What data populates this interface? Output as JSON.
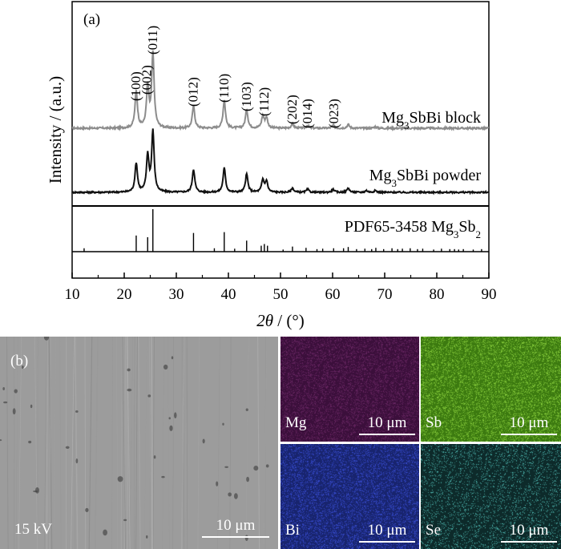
{
  "panel_a": {
    "label": "(a)",
    "xlabel_var": "2θ",
    "xlabel_unit": " / (°)",
    "ylabel": "Intensity / (a.u.)"
  },
  "chart_data": {
    "type": "line",
    "title": "",
    "xlabel": "2θ / (°)",
    "ylabel": "Intensity / (a.u.)",
    "xlim": [
      10,
      90
    ],
    "xticks": [
      10,
      20,
      30,
      40,
      50,
      60,
      70,
      80,
      90
    ],
    "series": [
      {
        "name": "Mg3SbBi block",
        "label_main": "Mg",
        "label_sub": "3",
        "label_rest": "SbBi block",
        "color": "#8c8c8c",
        "peaks": [
          [
            22.3,
            0.5
          ],
          [
            24.5,
            0.55
          ],
          [
            25.5,
            1.0
          ],
          [
            33.3,
            0.3
          ],
          [
            39.2,
            0.38
          ],
          [
            43.5,
            0.25
          ],
          [
            46.6,
            0.16
          ],
          [
            47.3,
            0.14
          ],
          [
            52.3,
            0.06
          ],
          [
            55.2,
            0.04
          ],
          [
            60.1,
            0.04
          ],
          [
            63.0,
            0.05
          ],
          [
            68.2,
            0.02
          ]
        ]
      },
      {
        "name": "Mg3SbBi powder",
        "label_main": "Mg",
        "label_sub": "3",
        "label_rest": "SbBi powder",
        "color": "#111111",
        "peaks": [
          [
            22.3,
            0.48
          ],
          [
            24.5,
            0.6
          ],
          [
            25.5,
            1.0
          ],
          [
            33.3,
            0.38
          ],
          [
            39.2,
            0.4
          ],
          [
            43.5,
            0.3
          ],
          [
            46.6,
            0.2
          ],
          [
            47.3,
            0.18
          ],
          [
            52.3,
            0.07
          ],
          [
            55.2,
            0.05
          ],
          [
            60.1,
            0.05
          ],
          [
            63.0,
            0.07
          ],
          [
            66.5,
            0.03
          ],
          [
            68.2,
            0.03
          ]
        ]
      }
    ],
    "reference": {
      "name": "PDF65-3458 Mg3Sb2",
      "label_main": "PDF65-3458 Mg",
      "label_sub": "3",
      "label_rest": "Sb",
      "label_sub2": "2",
      "sticks": [
        [
          12.3,
          0.08
        ],
        [
          22.3,
          0.38
        ],
        [
          24.5,
          0.34
        ],
        [
          25.5,
          1.0
        ],
        [
          33.3,
          0.44
        ],
        [
          37.3,
          0.08
        ],
        [
          39.2,
          0.46
        ],
        [
          41.2,
          0.07
        ],
        [
          43.5,
          0.26
        ],
        [
          46.3,
          0.14
        ],
        [
          46.9,
          0.18
        ],
        [
          47.5,
          0.14
        ],
        [
          50.5,
          0.05
        ],
        [
          52.3,
          0.12
        ],
        [
          54.9,
          0.09
        ],
        [
          57.0,
          0.06
        ],
        [
          58.1,
          0.07
        ],
        [
          60.2,
          0.08
        ],
        [
          62.1,
          0.08
        ],
        [
          63.0,
          0.11
        ],
        [
          64.6,
          0.06
        ],
        [
          66.2,
          0.07
        ],
        [
          67.5,
          0.06
        ],
        [
          68.3,
          0.09
        ],
        [
          69.8,
          0.06
        ],
        [
          71.4,
          0.08
        ],
        [
          72.5,
          0.06
        ],
        [
          73.4,
          0.07
        ],
        [
          74.9,
          0.08
        ],
        [
          76.3,
          0.06
        ],
        [
          77.3,
          0.07
        ],
        [
          79.4,
          0.05
        ],
        [
          80.9,
          0.07
        ],
        [
          82.5,
          0.06
        ],
        [
          83.4,
          0.06
        ],
        [
          84.2,
          0.05
        ],
        [
          85.1,
          0.06
        ],
        [
          87.0,
          0.05
        ],
        [
          88.6,
          0.06
        ]
      ]
    },
    "annotations": [
      {
        "hkl": "(100)",
        "x": 22.3
      },
      {
        "hkl": "(002)",
        "x": 24.4
      },
      {
        "hkl": "(011)",
        "x": 25.5
      },
      {
        "hkl": "(012)",
        "x": 33.3
      },
      {
        "hkl": "(110)",
        "x": 39.2
      },
      {
        "hkl": "(103)",
        "x": 43.5
      },
      {
        "hkl": "(112)",
        "x": 46.9
      },
      {
        "hkl": "(202)",
        "x": 52.3
      },
      {
        "hkl": "(014)",
        "x": 55.2
      },
      {
        "hkl": "(023)",
        "x": 60.3
      }
    ]
  },
  "panel_b": {
    "label": "(b)",
    "sem": {
      "voltage": "15 kV",
      "scale": "10 μm"
    },
    "maps": [
      {
        "element": "Mg",
        "scale": "10 μm",
        "color": "#6e2a68",
        "base": "#3b0f3b"
      },
      {
        "element": "Sb",
        "scale": "10 μm",
        "color": "#8fd640",
        "base": "#3c7a10"
      },
      {
        "element": "Bi",
        "scale": "10 μm",
        "color": "#3a4fd8",
        "base": "#18246e"
      },
      {
        "element": "Se",
        "scale": "10 μm",
        "color": "#56c8c0",
        "base": "#0d2a2a"
      }
    ]
  }
}
